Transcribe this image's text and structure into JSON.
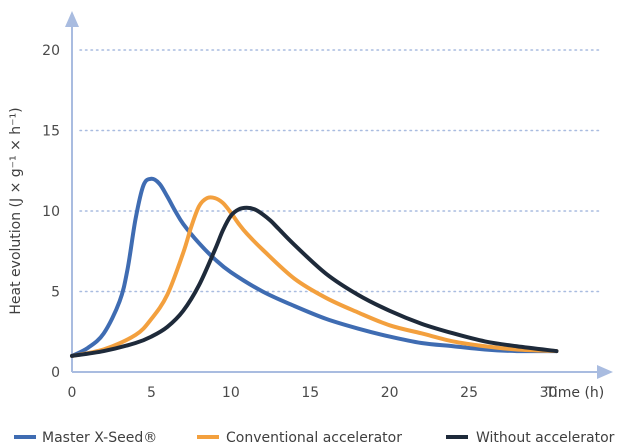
{
  "colors": {
    "axis": "#a9bce0",
    "grid": "#a9bce0",
    "text": "#4a4a4a"
  },
  "chart_data": {
    "type": "line",
    "title": "",
    "xlabel": "Time (h)",
    "ylabel": "Heat evolution (J × g⁻¹ × h⁻¹)",
    "xlim": [
      0,
      31
    ],
    "ylim": [
      0,
      20
    ],
    "x_ticks": [
      "0",
      "5",
      "10",
      "15",
      "20",
      "25",
      "30"
    ],
    "y_ticks": [
      "0",
      "5",
      "10",
      "15",
      "20"
    ],
    "grid": "horizontal dotted",
    "legend_position": "bottom",
    "series": [
      {
        "name": "Master X-Seed®",
        "color": "#3f6cb2",
        "x": [
          0,
          1,
          2,
          3,
          3.5,
          4,
          4.5,
          5,
          5.5,
          6,
          6.5,
          7,
          8,
          9,
          10,
          12,
          14,
          16,
          18,
          20,
          22,
          24,
          26,
          28,
          30.5
        ],
        "y": [
          1.0,
          1.5,
          2.4,
          4.4,
          6.4,
          9.5,
          11.6,
          12.0,
          11.7,
          10.9,
          10.0,
          9.2,
          8.0,
          7.0,
          6.2,
          5.0,
          4.1,
          3.3,
          2.7,
          2.2,
          1.8,
          1.6,
          1.4,
          1.3,
          1.3
        ]
      },
      {
        "name": "Conventional accelerator",
        "color": "#f3a03e",
        "x": [
          0,
          2,
          4,
          5,
          6,
          7,
          7.5,
          8,
          8.5,
          9,
          9.5,
          10,
          10.5,
          11,
          12,
          14,
          16,
          18,
          20,
          22,
          24,
          26,
          28,
          30.5
        ],
        "y": [
          1.0,
          1.4,
          2.3,
          3.3,
          4.8,
          7.4,
          9.0,
          10.3,
          10.8,
          10.8,
          10.5,
          9.9,
          9.2,
          8.6,
          7.6,
          5.8,
          4.6,
          3.7,
          2.9,
          2.4,
          1.9,
          1.6,
          1.4,
          1.3
        ]
      },
      {
        "name": "Without accelerator",
        "color": "#1e2a3a",
        "x": [
          0,
          2,
          4,
          5,
          6,
          7,
          8,
          9,
          9.5,
          10,
          10.5,
          11,
          11.5,
          12,
          12.5,
          13,
          14,
          16,
          18,
          20,
          22,
          24,
          26,
          28,
          30.5
        ],
        "y": [
          1.0,
          1.3,
          1.8,
          2.2,
          2.8,
          3.8,
          5.4,
          7.6,
          8.8,
          9.7,
          10.1,
          10.2,
          10.1,
          9.8,
          9.4,
          8.9,
          7.9,
          6.1,
          4.8,
          3.8,
          3.0,
          2.4,
          1.9,
          1.6,
          1.3
        ]
      }
    ]
  }
}
